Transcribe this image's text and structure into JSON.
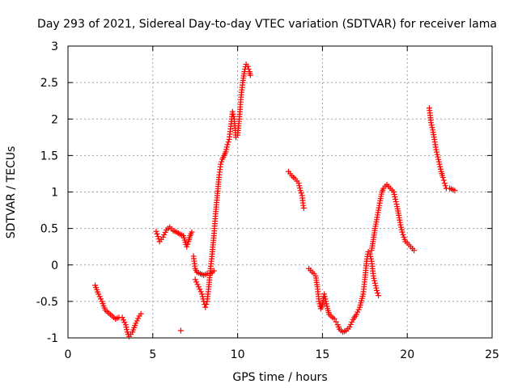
{
  "chart_data": {
    "type": "scatter",
    "title": "Day 293 of 2021, Sidereal Day-to-day VTEC variation (SDTVAR) for receiver lama",
    "xlabel": "GPS time / hours",
    "ylabel": "SDTVAR / TECUs",
    "xlim": [
      0,
      25
    ],
    "ylim": [
      -1,
      3
    ],
    "grid": true,
    "marker": "plus",
    "x_ticks": [
      0,
      5,
      10,
      15,
      20,
      25
    ],
    "x_tick_labels": [
      "0",
      "5",
      "10",
      "15",
      "20",
      "25"
    ],
    "y_ticks": [
      -1,
      -0.5,
      0,
      0.5,
      1,
      1.5,
      2,
      2.5,
      3
    ],
    "y_tick_labels": [
      "-1",
      "-0.5",
      "0",
      "0.5",
      "1",
      "1.5",
      "2",
      "2.5",
      "3"
    ],
    "series": [
      {
        "name": "SDTVAR",
        "color": "#ff0000",
        "segments": [
          [
            [
              1.6,
              -0.28
            ],
            [
              1.8,
              -0.4
            ],
            [
              2.0,
              -0.5
            ],
            [
              2.2,
              -0.62
            ],
            [
              2.4,
              -0.66
            ],
            [
              2.6,
              -0.7
            ],
            [
              2.8,
              -0.74
            ],
            [
              3.0,
              -0.72
            ],
            [
              3.2,
              -0.72
            ],
            [
              3.4,
              -0.82
            ],
            [
              3.5,
              -0.92
            ],
            [
              3.6,
              -0.98
            ],
            [
              3.8,
              -0.92
            ],
            [
              4.0,
              -0.8
            ],
            [
              4.2,
              -0.7
            ],
            [
              4.3,
              -0.67
            ]
          ],
          [
            [
              5.2,
              0.46
            ],
            [
              5.4,
              0.32
            ],
            [
              5.6,
              0.38
            ],
            [
              5.8,
              0.48
            ],
            [
              6.0,
              0.52
            ],
            [
              6.2,
              0.47
            ],
            [
              6.4,
              0.45
            ],
            [
              6.6,
              0.42
            ],
            [
              6.8,
              0.4
            ],
            [
              7.0,
              0.25
            ],
            [
              7.1,
              0.32
            ],
            [
              7.2,
              0.4
            ],
            [
              7.3,
              0.45
            ]
          ],
          [
            [
              6.65,
              -0.9
            ]
          ],
          [
            [
              7.4,
              0.12
            ],
            [
              7.5,
              -0.05
            ],
            [
              7.6,
              -0.1
            ],
            [
              7.8,
              -0.12
            ],
            [
              8.0,
              -0.14
            ],
            [
              8.2,
              -0.12
            ],
            [
              8.4,
              -0.12
            ],
            [
              8.6,
              -0.08
            ]
          ],
          [
            [
              7.5,
              -0.2
            ],
            [
              7.7,
              -0.3
            ],
            [
              7.9,
              -0.4
            ],
            [
              8.0,
              -0.5
            ],
            [
              8.1,
              -0.58
            ],
            [
              8.2,
              -0.5
            ],
            [
              8.3,
              -0.3
            ],
            [
              8.4,
              -0.05
            ],
            [
              8.5,
              0.15
            ],
            [
              8.6,
              0.4
            ],
            [
              8.7,
              0.7
            ],
            [
              8.8,
              0.95
            ],
            [
              8.9,
              1.2
            ],
            [
              9.0,
              1.38
            ],
            [
              9.1,
              1.45
            ],
            [
              9.2,
              1.5
            ],
            [
              9.3,
              1.55
            ],
            [
              9.4,
              1.65
            ],
            [
              9.5,
              1.72
            ],
            [
              9.6,
              1.9
            ],
            [
              9.7,
              2.1
            ],
            [
              9.8,
              2.0
            ],
            [
              9.9,
              1.75
            ],
            [
              10.0,
              1.78
            ],
            [
              10.1,
              2.0
            ],
            [
              10.2,
              2.3
            ],
            [
              10.3,
              2.5
            ],
            [
              10.4,
              2.65
            ],
            [
              10.5,
              2.75
            ],
            [
              10.6,
              2.72
            ],
            [
              10.7,
              2.65
            ],
            [
              10.75,
              2.6
            ]
          ],
          [
            [
              13.0,
              1.28
            ],
            [
              13.2,
              1.22
            ],
            [
              13.4,
              1.18
            ],
            [
              13.6,
              1.12
            ],
            [
              13.7,
              1.02
            ],
            [
              13.8,
              0.95
            ],
            [
              13.85,
              0.85
            ],
            [
              13.9,
              0.78
            ]
          ],
          [
            [
              14.2,
              -0.05
            ],
            [
              14.4,
              -0.1
            ],
            [
              14.5,
              -0.12
            ],
            [
              14.6,
              -0.15
            ],
            [
              14.7,
              -0.3
            ],
            [
              14.8,
              -0.5
            ],
            [
              14.9,
              -0.6
            ],
            [
              15.0,
              -0.55
            ],
            [
              15.1,
              -0.4
            ],
            [
              15.2,
              -0.5
            ],
            [
              15.3,
              -0.6
            ],
            [
              15.4,
              -0.68
            ],
            [
              15.5,
              -0.7
            ],
            [
              15.6,
              -0.72
            ],
            [
              15.7,
              -0.74
            ],
            [
              15.8,
              -0.78
            ],
            [
              15.9,
              -0.82
            ],
            [
              16.0,
              -0.88
            ],
            [
              16.2,
              -0.92
            ],
            [
              16.4,
              -0.9
            ],
            [
              16.6,
              -0.85
            ],
            [
              16.8,
              -0.75
            ],
            [
              17.0,
              -0.68
            ],
            [
              17.2,
              -0.58
            ],
            [
              17.4,
              -0.4
            ],
            [
              17.5,
              -0.2
            ],
            [
              17.6,
              0.05
            ],
            [
              17.7,
              0.18
            ],
            [
              17.8,
              0.15
            ],
            [
              17.9,
              0.05
            ],
            [
              18.0,
              -0.15
            ],
            [
              18.1,
              -0.25
            ],
            [
              18.2,
              -0.35
            ],
            [
              18.3,
              -0.42
            ]
          ],
          [
            [
              17.9,
              0.2
            ],
            [
              18.0,
              0.35
            ],
            [
              18.1,
              0.5
            ],
            [
              18.2,
              0.62
            ],
            [
              18.3,
              0.75
            ],
            [
              18.4,
              0.88
            ],
            [
              18.5,
              1.0
            ],
            [
              18.6,
              1.05
            ],
            [
              18.7,
              1.08
            ],
            [
              18.8,
              1.1
            ],
            [
              19.0,
              1.05
            ],
            [
              19.2,
              1.0
            ],
            [
              19.3,
              0.9
            ],
            [
              19.4,
              0.8
            ],
            [
              19.5,
              0.68
            ],
            [
              19.6,
              0.55
            ],
            [
              19.7,
              0.45
            ],
            [
              19.8,
              0.38
            ],
            [
              19.9,
              0.32
            ],
            [
              20.0,
              0.3
            ],
            [
              20.2,
              0.25
            ],
            [
              20.4,
              0.2
            ]
          ],
          [
            [
              21.3,
              2.15
            ],
            [
              21.4,
              1.95
            ],
            [
              21.5,
              1.85
            ],
            [
              21.6,
              1.72
            ],
            [
              21.7,
              1.58
            ],
            [
              21.8,
              1.48
            ],
            [
              21.9,
              1.38
            ],
            [
              22.0,
              1.28
            ],
            [
              22.1,
              1.2
            ],
            [
              22.2,
              1.12
            ],
            [
              22.3,
              1.05
            ],
            [
              22.5,
              1.05
            ],
            [
              22.7,
              1.03
            ],
            [
              22.8,
              1.02
            ]
          ]
        ]
      }
    ]
  }
}
